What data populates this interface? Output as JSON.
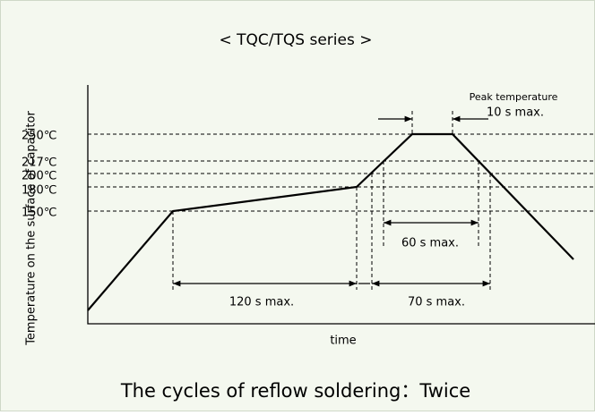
{
  "title": "< TQC/TQS series >",
  "y_axis_label": "Temperature on the surface of capacitor",
  "x_axis_label": "time",
  "temperatures": [
    "250℃",
    "217℃",
    "200℃",
    "180℃",
    "150℃"
  ],
  "annotations": {
    "peak_title": "Peak temperature",
    "peak_time": "10 s max.",
    "preheat": "120 s max.",
    "above_200": "70 s max.",
    "above_217": "60 s max."
  },
  "footer": "The cycles of reflow soldering：Twice"
}
